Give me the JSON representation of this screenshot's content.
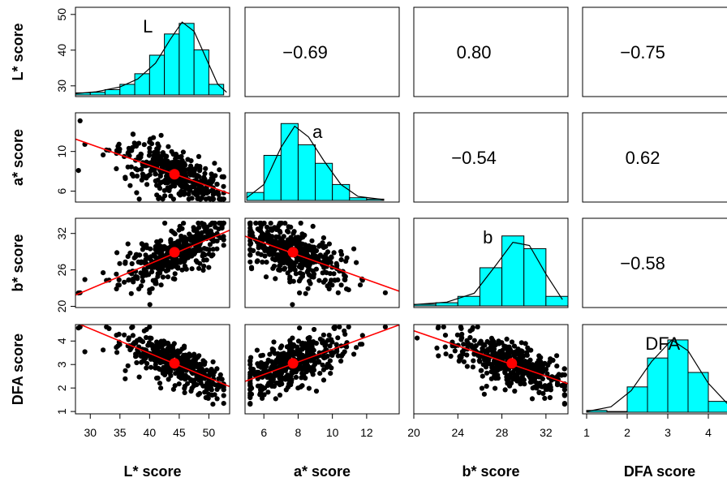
{
  "chart_data": {
    "type": "scatter",
    "variables": [
      {
        "label": "L* score",
        "short": "L",
        "range": [
          27.5,
          53.5
        ],
        "ticks": [
          30,
          35,
          40,
          45,
          50
        ],
        "yrange": [
          27,
          52
        ],
        "yticks": [
          30,
          40,
          50
        ]
      },
      {
        "label": "a* score",
        "short": "a",
        "range": [
          4.9,
          13.9
        ],
        "ticks": [
          6,
          8,
          10,
          12
        ],
        "yrange": [
          4.9,
          13.9
        ],
        "yticks": [
          6,
          10
        ]
      },
      {
        "label": "b* score",
        "short": "b",
        "range": [
          20,
          34
        ],
        "ticks": [
          20,
          24,
          28,
          32
        ],
        "yrange": [
          19.8,
          34.5
        ],
        "yticks": [
          20,
          26,
          32
        ]
      },
      {
        "label": "DFA score",
        "short": "DFA",
        "range": [
          0.9,
          4.7
        ],
        "ticks": [
          1,
          2,
          3,
          4
        ],
        "yrange": [
          0.9,
          4.7
        ],
        "yticks": [
          1,
          2,
          3,
          4
        ]
      }
    ],
    "correlations": [
      {
        "row": 0,
        "col": 1,
        "text": "−0.69"
      },
      {
        "row": 0,
        "col": 2,
        "text": "0.80"
      },
      {
        "row": 0,
        "col": 3,
        "text": "−0.75"
      },
      {
        "row": 1,
        "col": 2,
        "text": "−0.54"
      },
      {
        "row": 1,
        "col": 3,
        "text": "0.62"
      },
      {
        "row": 2,
        "col": 3,
        "text": "−0.58"
      }
    ],
    "histograms": [
      {
        "bins": [
          [
            27.5,
            30
          ],
          [
            30,
            32.5
          ],
          [
            32.5,
            35
          ],
          [
            35,
            37.5
          ],
          [
            37.5,
            40
          ],
          [
            40,
            42.5
          ],
          [
            42.5,
            45
          ],
          [
            45,
            47.5
          ],
          [
            47.5,
            50
          ],
          [
            50,
            52.5
          ]
        ],
        "counts": [
          0.8,
          1,
          2,
          4,
          8,
          15,
          23,
          27,
          17,
          4
        ],
        "ymax": 30,
        "curve": [
          [
            27.5,
            0.5
          ],
          [
            31,
            1.2
          ],
          [
            35,
            3
          ],
          [
            38,
            6
          ],
          [
            41,
            12
          ],
          [
            43.5,
            21
          ],
          [
            45.5,
            27.5
          ],
          [
            47.5,
            24
          ],
          [
            49.5,
            14
          ],
          [
            51.5,
            4
          ],
          [
            53,
            1
          ]
        ]
      },
      {
        "bins": [
          [
            5,
            6
          ],
          [
            6,
            7
          ],
          [
            7,
            8
          ],
          [
            8,
            9
          ],
          [
            9,
            10
          ],
          [
            10,
            11
          ],
          [
            11,
            12
          ],
          [
            12,
            13
          ]
        ],
        "counts": [
          3,
          17,
          29,
          21,
          14,
          6,
          1,
          0.5
        ],
        "ymax": 30,
        "curve": [
          [
            5,
            1
          ],
          [
            6,
            6
          ],
          [
            7,
            20
          ],
          [
            7.8,
            28
          ],
          [
            8.6,
            24
          ],
          [
            9.5,
            15
          ],
          [
            10.5,
            6
          ],
          [
            11.5,
            1.5
          ],
          [
            13,
            0.3
          ]
        ]
      },
      {
        "bins": [
          [
            20,
            22
          ],
          [
            22,
            24
          ],
          [
            24,
            26
          ],
          [
            26,
            28
          ],
          [
            28,
            30
          ],
          [
            30,
            32
          ],
          [
            32,
            34
          ]
        ],
        "counts": [
          0.5,
          1,
          3,
          12,
          22,
          18,
          3
        ],
        "ymax": 25,
        "curve": [
          [
            20,
            0.4
          ],
          [
            23,
            1.2
          ],
          [
            25.5,
            4
          ],
          [
            27.5,
            13
          ],
          [
            29,
            20
          ],
          [
            30.5,
            19
          ],
          [
            32,
            10
          ],
          [
            33.5,
            2
          ]
        ]
      },
      {
        "bins": [
          [
            1,
            1.5
          ],
          [
            1.5,
            2
          ],
          [
            2,
            2.5
          ],
          [
            2.5,
            3
          ],
          [
            3,
            3.5
          ],
          [
            3.5,
            4
          ],
          [
            4,
            4.5
          ],
          [
            4.5,
            5
          ]
        ],
        "counts": [
          0.5,
          0.2,
          7,
          15,
          20,
          11,
          3,
          0.3
        ],
        "ymax": 22,
        "curve": [
          [
            1,
            0.2
          ],
          [
            1.6,
            1.5
          ],
          [
            2.1,
            6
          ],
          [
            2.6,
            14
          ],
          [
            3.1,
            20
          ],
          [
            3.5,
            17
          ],
          [
            4,
            8
          ],
          [
            4.5,
            2
          ]
        ]
      }
    ],
    "means": {
      "L* score": 44.2,
      "a* score": 7.7,
      "b* score": 28.9,
      "DFA score": 3.05
    },
    "point_color": "#000000",
    "fit_color": "#ff0000",
    "bar_color": "#00ffff",
    "mean_marker_color": "#ff0000"
  }
}
